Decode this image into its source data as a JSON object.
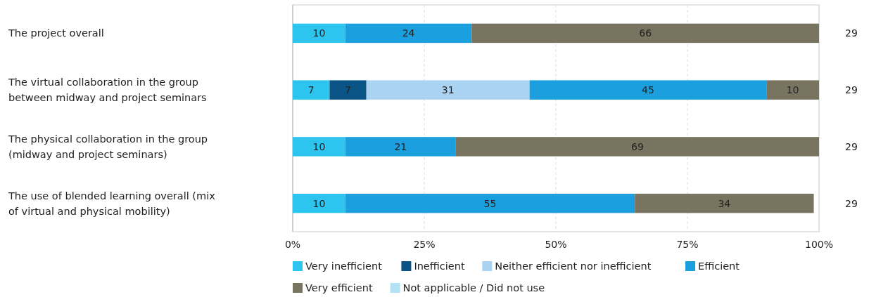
{
  "chart_data": {
    "type": "bar",
    "orientation": "horizontal",
    "stacked": true,
    "categories": [
      "The project overall",
      "The virtual collaboration in the group between midway and project seminars",
      "The physical collaboration in the group (midway and project seminars)",
      "The use of blended learning overall (mix of virtual and physical mobility)"
    ],
    "series": [
      {
        "name": "Very inefficient",
        "color": "#2ec4f0",
        "values": [
          10,
          7,
          10,
          10
        ]
      },
      {
        "name": "Inefficient",
        "color": "#0b5486",
        "values": [
          null,
          7,
          null,
          null
        ]
      },
      {
        "name": "Neither efficient nor inefficient",
        "color": "#aad3f2",
        "values": [
          null,
          31,
          null,
          null
        ]
      },
      {
        "name": "Efficient",
        "color": "#1b9fde",
        "values": [
          24,
          45,
          21,
          55
        ]
      },
      {
        "name": "Very efficient",
        "color": "#78745f",
        "values": [
          66,
          10,
          69,
          34
        ]
      },
      {
        "name": "Not applicable / Did not use",
        "color": "#b3e2f7",
        "values": [
          null,
          null,
          null,
          null
        ]
      }
    ],
    "xlim": [
      0,
      100
    ],
    "xticks": [
      {
        "value": 0,
        "label": "0%"
      },
      {
        "value": 25,
        "label": "25%"
      },
      {
        "value": 50,
        "label": "50%"
      },
      {
        "value": 75,
        "label": "75%"
      },
      {
        "value": 100,
        "label": "100%"
      }
    ],
    "data_labels": true,
    "annotations": [
      "29",
      "29",
      "29",
      "29"
    ],
    "grid": "x",
    "legend": "bottom"
  }
}
